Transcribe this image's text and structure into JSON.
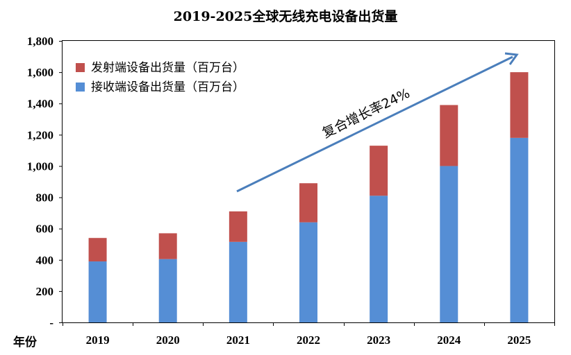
{
  "chart_data": {
    "type": "bar",
    "stacked": true,
    "title": "2019-2025全球无线充电设备出货量",
    "xlabel": "年份",
    "ylabel": "",
    "categories": [
      "2019",
      "2020",
      "2021",
      "2022",
      "2023",
      "2024",
      "2025"
    ],
    "series": [
      {
        "name": "接收端设备出货量（百万台）",
        "color": "#558ED5",
        "values": [
          390,
          405,
          515,
          640,
          810,
          1000,
          1180
        ]
      },
      {
        "name": "发射端设备出货量（百万台）",
        "color": "#C0504D",
        "values": [
          150,
          165,
          195,
          250,
          320,
          390,
          420
        ]
      }
    ],
    "ylim": [
      0,
      1800
    ],
    "yticks": [
      {
        "value": 0,
        "label": "-"
      },
      {
        "value": 200,
        "label": "200"
      },
      {
        "value": 400,
        "label": "400"
      },
      {
        "value": 600,
        "label": "600"
      },
      {
        "value": 800,
        "label": "800"
      },
      {
        "value": 1000,
        "label": "1,000"
      },
      {
        "value": 1200,
        "label": "1,200"
      },
      {
        "value": 1400,
        "label": "1,400"
      },
      {
        "value": 1600,
        "label": "1,600"
      },
      {
        "value": 1800,
        "label": "1,800"
      }
    ],
    "grid": false,
    "legend_position": "top-left",
    "legend_order": [
      1,
      0
    ],
    "annotation": {
      "text": "复合增长率24%",
      "color": "#4A7EBB"
    }
  }
}
